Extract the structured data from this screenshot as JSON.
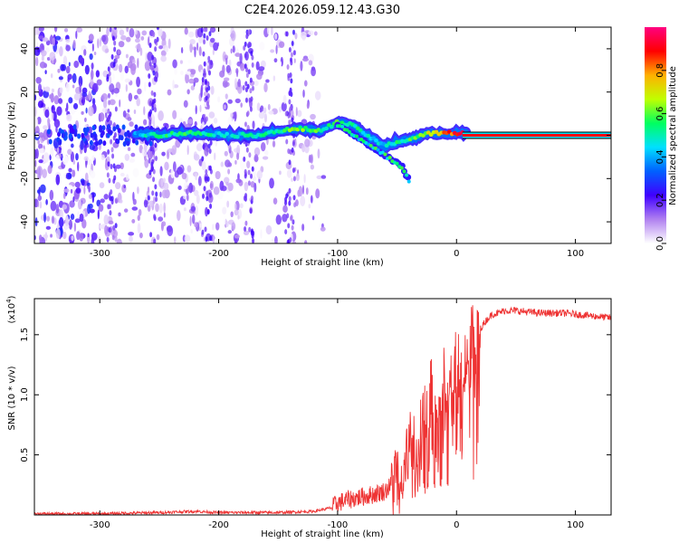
{
  "title": "C2E4.2026.059.12.43.G30",
  "chart_data": [
    {
      "type": "heatmap",
      "xlabel": "Height of straight line (km)",
      "ylabel": "Frequency (Hz)",
      "xlim": [
        -355,
        130
      ],
      "ylim": [
        -50,
        50
      ],
      "xticks": [
        -300,
        -200,
        -100,
        0,
        100
      ],
      "yticks": [
        -40,
        -20,
        0,
        20,
        40
      ],
      "colorbar": {
        "label": "Normalized spectral amplitude",
        "range": [
          0.0,
          1.0
        ],
        "ticks": [
          0.0,
          0.2,
          0.4,
          0.6,
          0.8
        ],
        "tick_labels": [
          "0.0",
          "0.2",
          "0.4",
          "0.6",
          "0.8"
        ],
        "colormap": [
          "#ffffff",
          "#b080f0",
          "#4000ff",
          "#0060ff",
          "#00e0ff",
          "#00ff60",
          "#c0ff00",
          "#ffb000",
          "#ff0000",
          "#ff0080"
        ]
      },
      "ridge": {
        "x": [
          -270,
          -250,
          -230,
          -210,
          -190,
          -170,
          -150,
          -130,
          -115,
          -100,
          -90,
          -80,
          -70,
          -60,
          -50,
          -40,
          -30,
          -20,
          -10,
          0,
          50,
          130
        ],
        "y": [
          1,
          0,
          1,
          1,
          0,
          0,
          2,
          3,
          2,
          6,
          5,
          2,
          -2,
          -5,
          -3,
          -2,
          0,
          1,
          1,
          1,
          0,
          0
        ],
        "amplitude": [
          0.4,
          0.5,
          0.55,
          0.5,
          0.45,
          0.5,
          0.55,
          0.6,
          0.55,
          0.55,
          0.5,
          0.5,
          0.45,
          0.45,
          0.5,
          0.55,
          0.6,
          0.7,
          0.8,
          0.9,
          0.9,
          0.9
        ]
      },
      "branch": {
        "x": [
          -100,
          -85,
          -70,
          -55,
          -45,
          -40
        ],
        "y": [
          5,
          0,
          -6,
          -11,
          -15,
          -21
        ]
      }
    },
    {
      "type": "line",
      "xlabel": "Height of straight line (km)",
      "ylabel": "SNR (10 * v/v)",
      "y_multiplier": "(x10",
      "y_multiplier_exp": "4",
      "y_multiplier_close": ")",
      "xlim": [
        -355,
        130
      ],
      "ylim": [
        0,
        1.8
      ],
      "xticks": [
        -300,
        -200,
        -100,
        0,
        100
      ],
      "yticks": [
        0.5,
        1.0,
        1.5
      ],
      "ytick_labels": [
        "0.5",
        "1.0",
        "1.5"
      ],
      "series": [
        {
          "color": "#ee3333",
          "x": [
            -355,
            -300,
            -250,
            -220,
            -200,
            -150,
            -120,
            -105,
            -100,
            -90,
            -80,
            -70,
            -60,
            -50,
            -45,
            -40,
            -35,
            -30,
            -25,
            -20,
            -15,
            -10,
            -5,
            0,
            5,
            10,
            15,
            20,
            25,
            30,
            35,
            40,
            50,
            60,
            70,
            80,
            90,
            100,
            110,
            120,
            130
          ],
          "y": [
            0.01,
            0.01,
            0.02,
            0.03,
            0.02,
            0.02,
            0.03,
            0.06,
            0.1,
            0.13,
            0.15,
            0.17,
            0.2,
            0.3,
            0.45,
            0.6,
            0.7,
            0.78,
            0.9,
            1.0,
            1.1,
            1.15,
            1.2,
            1.25,
            1.3,
            1.35,
            1.45,
            1.55,
            1.62,
            1.67,
            1.68,
            1.7,
            1.7,
            1.69,
            1.68,
            1.68,
            1.68,
            1.67,
            1.66,
            1.65,
            1.64
          ]
        }
      ]
    }
  ]
}
